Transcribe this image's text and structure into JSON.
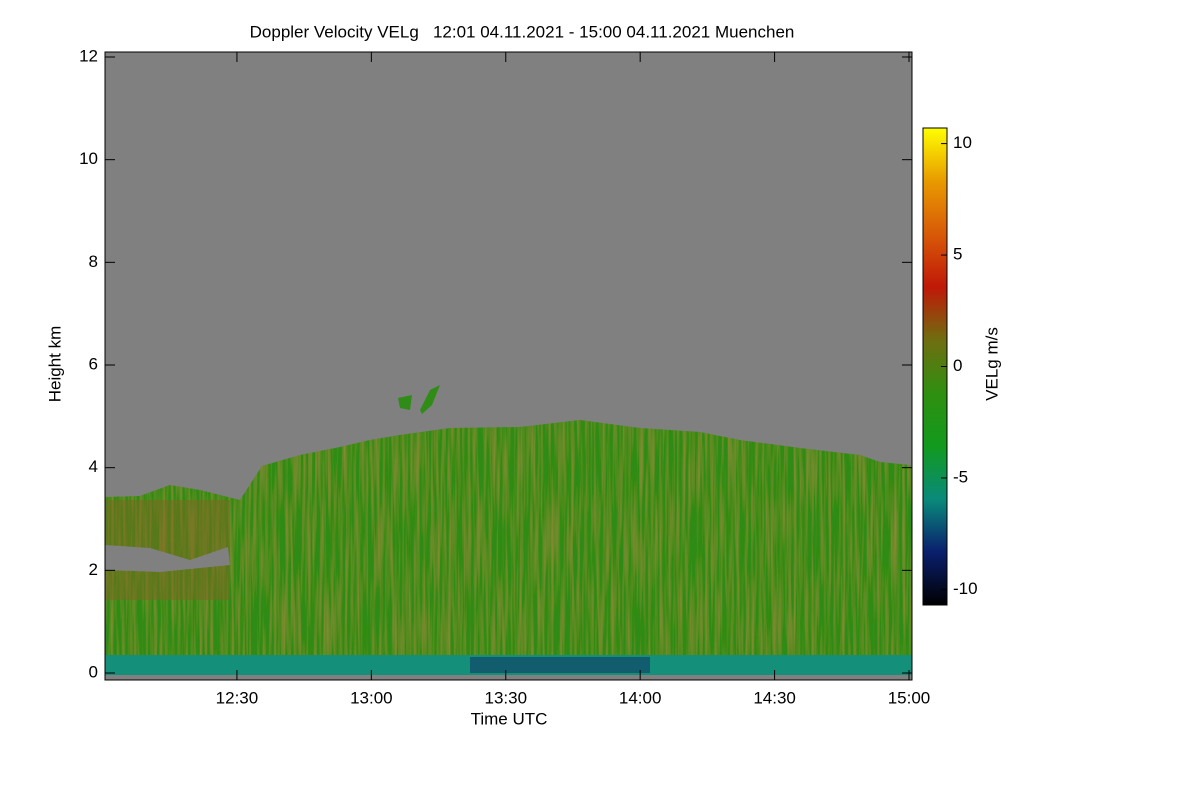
{
  "chart_data": {
    "type": "heatmap",
    "title": "Doppler Velocity VELg   12:01 04.11.2021 - 15:00 04.11.2021 Muenchen",
    "xlabel": "Time UTC",
    "ylabel": "Height km",
    "xlim": [
      "12:01",
      "15:00"
    ],
    "xticks": [
      "12:30",
      "13:00",
      "13:30",
      "14:00",
      "14:30",
      "15:00"
    ],
    "ylim": [
      0,
      12
    ],
    "yticks": [
      0,
      2,
      4,
      6,
      8,
      10,
      12
    ],
    "colorbar": {
      "label": "VELg m/s",
      "clim": [
        -10.7,
        10.7
      ],
      "ticks": [
        -10,
        -5,
        0,
        5,
        10
      ],
      "colormap": [
        "#000000",
        "#0a1f6e",
        "#0a8a7a",
        "#129a1e",
        "#2f8f10",
        "#6f6e10",
        "#c01808",
        "#d85a08",
        "#e89a00",
        "#ffff00"
      ]
    }
  }
}
